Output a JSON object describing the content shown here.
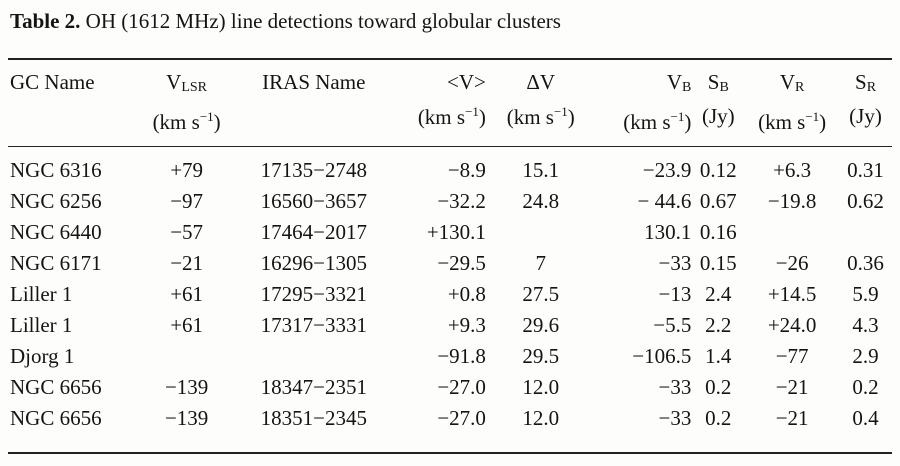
{
  "caption": {
    "label": "Table 2.",
    "text": " OH (1612 MHz) line detections toward globular clusters"
  },
  "columns": [
    {
      "main": "GC Name",
      "sub": "",
      "unit": ""
    },
    {
      "main": "V",
      "sub": "LSR",
      "unit_pre": "(km s",
      "unit_sup": "−1",
      "unit_post": ")"
    },
    {
      "main": "IRAS Name",
      "sub": "",
      "unit": ""
    },
    {
      "main": "<V>",
      "sub": "",
      "unit_pre": "(km s",
      "unit_sup": "−1",
      "unit_post": ")"
    },
    {
      "main": "ΔV",
      "sub": "",
      "unit_pre": "(km s",
      "unit_sup": "−1",
      "unit_post": ")"
    },
    {
      "main": "V",
      "sub": "B",
      "unit_pre": "(km s",
      "unit_sup": "−1",
      "unit_post": ")"
    },
    {
      "main": "S",
      "sub": "B",
      "unit_pre": "(Jy)",
      "unit_sup": "",
      "unit_post": ""
    },
    {
      "main": "V",
      "sub": "R",
      "unit_pre": "(km s",
      "unit_sup": "−1",
      "unit_post": ")"
    },
    {
      "main": "S",
      "sub": "R",
      "unit_pre": "(Jy)",
      "unit_sup": "",
      "unit_post": ""
    }
  ],
  "rows": [
    [
      "NGC 6316",
      "+79",
      "17135−2748",
      "−8.9",
      "15.1",
      "−23.9",
      "0.12",
      "+6.3",
      "0.31"
    ],
    [
      "NGC 6256",
      "−97",
      "16560−3657",
      "−32.2",
      "24.8",
      "− 44.6",
      "0.67",
      "−19.8",
      "0.62"
    ],
    [
      "NGC 6440",
      "−57",
      "17464−2017",
      "+130.1",
      "",
      "130.1",
      "0.16",
      "",
      ""
    ],
    [
      "NGC 6171",
      "−21",
      "16296−1305",
      "−29.5",
      "7",
      "−33",
      "0.15",
      "−26",
      "0.36"
    ],
    [
      "Liller 1",
      "+61",
      "17295−3321",
      "+0.8",
      "27.5",
      "−13",
      "2.4",
      "+14.5",
      "5.9"
    ],
    [
      "Liller 1",
      "+61",
      "17317−3331",
      "+9.3",
      "29.6",
      "−5.5",
      "2.2",
      "+24.0",
      "4.3"
    ],
    [
      "Djorg 1",
      "",
      "",
      "−91.8",
      "29.5",
      "−106.5",
      "1.4",
      "−77",
      "2.9"
    ],
    [
      "NGC 6656",
      "−139",
      "18347−2351",
      "−27.0",
      "12.0",
      "−33",
      "0.2",
      "−21",
      "0.2"
    ],
    [
      "NGC 6656",
      "−139",
      "18351−2345",
      "−27.0",
      "12.0",
      "−33",
      "0.2",
      "−21",
      "0.4"
    ]
  ]
}
